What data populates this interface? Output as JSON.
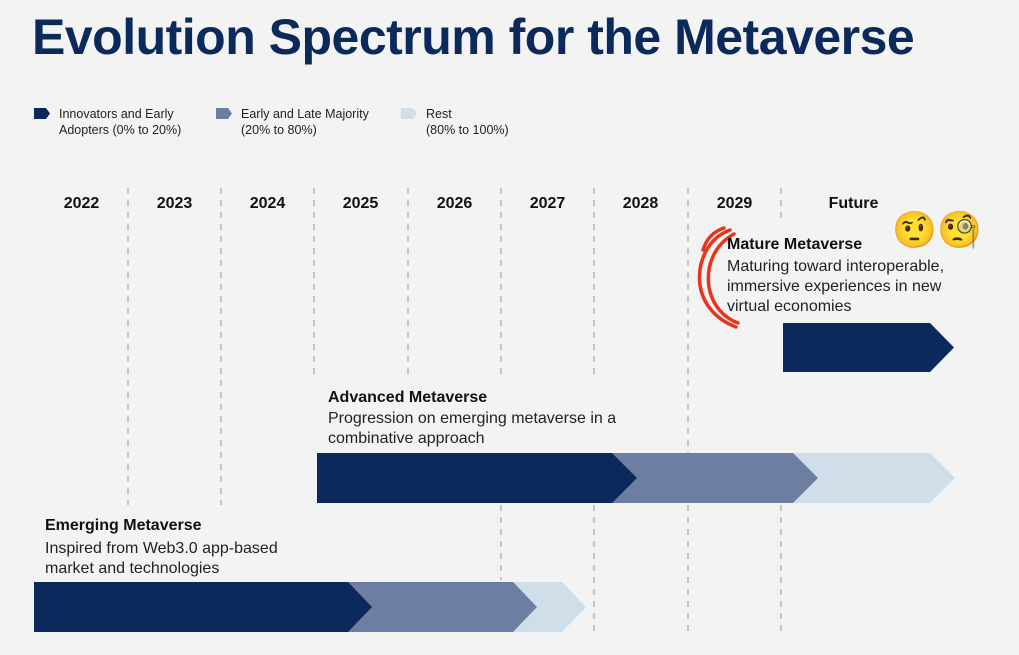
{
  "title": "Evolution Spectrum for the Metaverse",
  "legend": [
    {
      "label_line1": "Innovators and Early",
      "label_line2": "Adopters (0% to 20%)",
      "color": "#0b2a5b"
    },
    {
      "label_line1": "Early and Late Majority",
      "label_line2": "(20% to 80%)",
      "color": "#6c7fa3"
    },
    {
      "label_line1": "Rest",
      "label_line2": "(80% to 100%)",
      "color": "#d0deea"
    }
  ],
  "years": [
    "2022",
    "2023",
    "2024",
    "2025",
    "2026",
    "2027",
    "2028",
    "2029",
    "Future"
  ],
  "stages": {
    "mature": {
      "title": "Mature Metaverse",
      "description": "Maturing toward interoperable, immersive experiences in new virtual economies"
    },
    "advanced": {
      "title": "Advanced Metaverse",
      "description": "Progression on emerging metaverse in a combinative approach"
    },
    "emerging": {
      "title": "Emerging Metaverse",
      "description": "Inspired from Web3.0 app-based market and technologies"
    }
  },
  "emojis": {
    "raised_eyebrow": "🤨",
    "monocle": "🧐"
  },
  "colors": {
    "title": "#0b2a5b",
    "dark": "#0b2a5b",
    "mid": "#6c7fa3",
    "light": "#d0deea",
    "annotation": "#e8341c",
    "gridline": "#999999"
  }
}
